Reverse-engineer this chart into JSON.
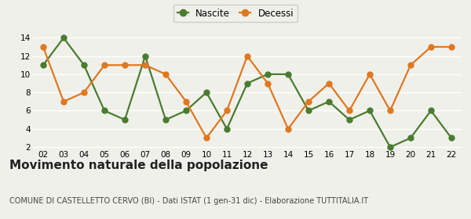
{
  "years": [
    "02",
    "03",
    "04",
    "05",
    "06",
    "07",
    "08",
    "09",
    "10",
    "11",
    "12",
    "13",
    "14",
    "15",
    "16",
    "17",
    "18",
    "19",
    "20",
    "21",
    "22"
  ],
  "nascite": [
    11,
    14,
    11,
    6,
    5,
    12,
    5,
    6,
    8,
    4,
    9,
    10,
    10,
    6,
    7,
    5,
    6,
    2,
    3,
    6,
    3
  ],
  "decessi": [
    13,
    7,
    8,
    11,
    11,
    11,
    10,
    7,
    3,
    6,
    12,
    9,
    4,
    7,
    9,
    6,
    10,
    6,
    11,
    13,
    13
  ],
  "nascite_color": "#4a7c2f",
  "decessi_color": "#e07820",
  "title": "Movimento naturale della popolazione",
  "subtitle": "COMUNE DI CASTELLETTO CERVO (BI) - Dati ISTAT (1 gen-31 dic) - Elaborazione TUTTITALIA.IT",
  "legend_nascite": "Nascite",
  "legend_decessi": "Decessi",
  "ylim_min": 2,
  "ylim_max": 14,
  "yticks": [
    2,
    4,
    6,
    8,
    10,
    12,
    14
  ],
  "background_color": "#f0f0eb",
  "grid_color": "#ffffff",
  "title_fontsize": 11,
  "subtitle_fontsize": 7,
  "marker_size": 5,
  "line_width": 1.6
}
